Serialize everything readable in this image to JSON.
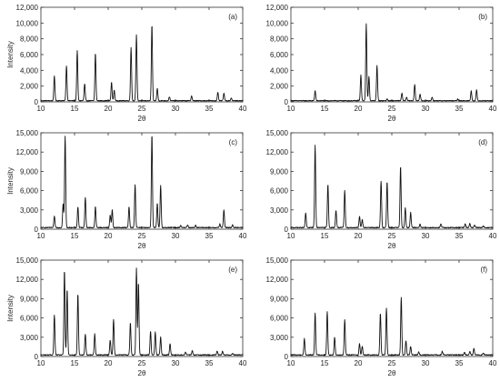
{
  "figure": {
    "colors": {
      "trace": "#111111",
      "frame": "#333333",
      "background": "#ffffff"
    }
  },
  "chart_data": [
    {
      "type": "line",
      "panel_label": "(a)",
      "xlabel": "2θ",
      "ylabel": "Intensity",
      "xlim": [
        10,
        40
      ],
      "ylim": [
        0,
        12000
      ],
      "xticks": [
        10,
        15,
        20,
        25,
        30,
        35,
        40
      ],
      "yticks": [
        0,
        2000,
        4000,
        6000,
        8000,
        10000,
        12000
      ],
      "ytick_labels": [
        "0",
        "2,000",
        "4,000",
        "6,000",
        "8,000",
        "10,000",
        "12,000"
      ],
      "baseline": 150,
      "peaks": [
        [
          12.0,
          3300
        ],
        [
          13.8,
          4600
        ],
        [
          15.4,
          6500
        ],
        [
          16.5,
          2300
        ],
        [
          18.1,
          6200
        ],
        [
          20.5,
          2500
        ],
        [
          20.9,
          1500
        ],
        [
          23.4,
          6900
        ],
        [
          24.2,
          8500
        ],
        [
          26.5,
          9800
        ],
        [
          27.3,
          1700
        ],
        [
          29.1,
          650
        ],
        [
          32.4,
          750
        ],
        [
          36.3,
          1200
        ],
        [
          37.2,
          1100
        ],
        [
          38.3,
          500
        ]
      ]
    },
    {
      "type": "line",
      "panel_label": "(b)",
      "xlabel": "2θ",
      "ylabel": "",
      "xlim": [
        10,
        40
      ],
      "ylim": [
        0,
        12000
      ],
      "xticks": [
        10,
        15,
        20,
        25,
        30,
        35,
        40
      ],
      "yticks": [
        0,
        2000,
        4000,
        6000,
        8000,
        10000,
        12000
      ],
      "ytick_labels": [
        "0",
        "2,000",
        "4,000",
        "6,000",
        "8,000",
        "10,000",
        "12,000"
      ],
      "baseline": 150,
      "peaks": [
        [
          13.6,
          1400
        ],
        [
          20.4,
          3400
        ],
        [
          21.2,
          9900
        ],
        [
          21.6,
          3200
        ],
        [
          22.8,
          4600
        ],
        [
          24.3,
          350
        ],
        [
          26.5,
          1100
        ],
        [
          27.2,
          600
        ],
        [
          28.4,
          2200
        ],
        [
          29.2,
          1000
        ],
        [
          31.0,
          600
        ],
        [
          34.8,
          350
        ],
        [
          36.8,
          1400
        ],
        [
          37.6,
          1500
        ]
      ]
    },
    {
      "type": "line",
      "panel_label": "(c)",
      "xlabel": "2θ",
      "ylabel": "Intensity",
      "xlim": [
        10,
        40
      ],
      "ylim": [
        0,
        15000
      ],
      "xticks": [
        10,
        15,
        20,
        25,
        30,
        35,
        40
      ],
      "yticks": [
        0,
        3000,
        6000,
        9000,
        12000,
        15000
      ],
      "ytick_labels": [
        "0",
        "3,000",
        "6,000",
        "9,000",
        "12,000",
        "15,000"
      ],
      "baseline": 250,
      "peaks": [
        [
          12.0,
          2000
        ],
        [
          13.3,
          4000
        ],
        [
          13.6,
          14500
        ],
        [
          15.5,
          3500
        ],
        [
          16.6,
          5000
        ],
        [
          18.1,
          3500
        ],
        [
          20.3,
          2200
        ],
        [
          20.6,
          3000
        ],
        [
          23.1,
          3500
        ],
        [
          24.0,
          7000
        ],
        [
          26.5,
          14800
        ],
        [
          27.3,
          4000
        ],
        [
          27.8,
          6800
        ],
        [
          30.8,
          600
        ],
        [
          31.8,
          700
        ],
        [
          33.0,
          600
        ],
        [
          36.6,
          800
        ],
        [
          37.2,
          3000
        ],
        [
          38.5,
          700
        ]
      ]
    },
    {
      "type": "line",
      "panel_label": "(d)",
      "xlabel": "2θ",
      "ylabel": "",
      "xlim": [
        10,
        40
      ],
      "ylim": [
        0,
        15000
      ],
      "xticks": [
        10,
        15,
        20,
        25,
        30,
        35,
        40
      ],
      "yticks": [
        0,
        3000,
        6000,
        9000,
        12000,
        15000
      ],
      "ytick_labels": [
        "0",
        "3,000",
        "6,000",
        "9,000",
        "12,000",
        "15,000"
      ],
      "baseline": 250,
      "peaks": [
        [
          12.2,
          2500
        ],
        [
          13.6,
          13000
        ],
        [
          15.5,
          7000
        ],
        [
          16.7,
          3000
        ],
        [
          18.0,
          6000
        ],
        [
          20.2,
          2000
        ],
        [
          20.6,
          1500
        ],
        [
          23.4,
          7500
        ],
        [
          24.3,
          7400
        ],
        [
          26.3,
          9800
        ],
        [
          27.0,
          3300
        ],
        [
          27.8,
          2600
        ],
        [
          29.2,
          800
        ],
        [
          32.3,
          800
        ],
        [
          35.9,
          800
        ],
        [
          36.6,
          900
        ],
        [
          37.3,
          600
        ],
        [
          38.6,
          500
        ]
      ]
    },
    {
      "type": "line",
      "panel_label": "(e)",
      "xlabel": "2θ",
      "ylabel": "Intensity",
      "xlim": [
        10,
        40
      ],
      "ylim": [
        0,
        15000
      ],
      "xticks": [
        10,
        15,
        20,
        25,
        30,
        35,
        40
      ],
      "yticks": [
        0,
        3000,
        6000,
        9000,
        12000,
        15000
      ],
      "ytick_labels": [
        "0",
        "3,000",
        "6,000",
        "9,000",
        "12,000",
        "15,000"
      ],
      "baseline": 250,
      "peaks": [
        [
          12.0,
          6500
        ],
        [
          13.5,
          13500
        ],
        [
          13.9,
          10500
        ],
        [
          15.5,
          9800
        ],
        [
          16.6,
          3500
        ],
        [
          18.0,
          3500
        ],
        [
          20.3,
          2600
        ],
        [
          20.8,
          5800
        ],
        [
          23.3,
          5300
        ],
        [
          24.2,
          13800
        ],
        [
          24.5,
          11500
        ],
        [
          26.3,
          4000
        ],
        [
          27.0,
          3800
        ],
        [
          27.8,
          3000
        ],
        [
          29.2,
          2000
        ],
        [
          31.5,
          700
        ],
        [
          32.5,
          900
        ],
        [
          36.2,
          900
        ],
        [
          37.0,
          800
        ],
        [
          38.5,
          500
        ]
      ]
    },
    {
      "type": "line",
      "panel_label": "(f)",
      "xlabel": "2θ",
      "ylabel": "",
      "xlim": [
        10,
        40
      ],
      "ylim": [
        0,
        15000
      ],
      "xticks": [
        10,
        15,
        20,
        25,
        30,
        35,
        40
      ],
      "yticks": [
        0,
        3000,
        6000,
        9000,
        12000,
        15000
      ],
      "ytick_labels": [
        "0",
        "3,000",
        "6,000",
        "9,000",
        "12,000",
        "15,000"
      ],
      "baseline": 250,
      "peaks": [
        [
          12.0,
          2800
        ],
        [
          13.6,
          6800
        ],
        [
          15.4,
          7000
        ],
        [
          16.5,
          3000
        ],
        [
          18.0,
          5800
        ],
        [
          20.2,
          2000
        ],
        [
          20.6,
          1600
        ],
        [
          23.3,
          6800
        ],
        [
          24.2,
          7500
        ],
        [
          26.4,
          9200
        ],
        [
          27.1,
          2500
        ],
        [
          27.8,
          1600
        ],
        [
          29.0,
          700
        ],
        [
          32.5,
          800
        ],
        [
          35.8,
          700
        ],
        [
          36.6,
          800
        ],
        [
          37.2,
          1200
        ],
        [
          38.6,
          500
        ]
      ]
    }
  ]
}
